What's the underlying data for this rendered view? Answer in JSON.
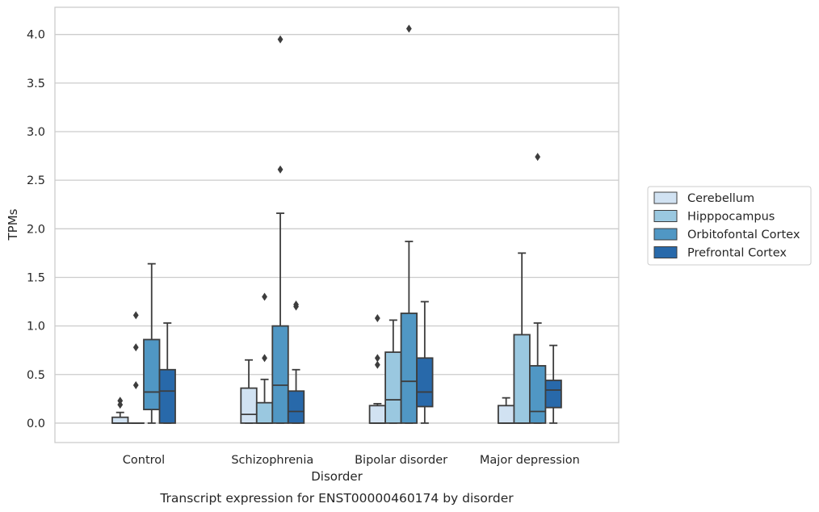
{
  "chart_data": {
    "type": "box",
    "title": "",
    "caption": "Transcript expression for ENST00000460174 by disorder",
    "xlabel": "Disorder",
    "ylabel": "TPMs",
    "ylim": [
      -0.2,
      4.28
    ],
    "yticks": [
      0.0,
      0.5,
      1.0,
      1.5,
      2.0,
      2.5,
      3.0,
      3.5,
      4.0
    ],
    "ytick_labels": [
      "0.0",
      "0.5",
      "1.0",
      "1.5",
      "2.0",
      "2.5",
      "3.0",
      "3.5",
      "4.0"
    ],
    "grid": "horizontal",
    "legend_position": "right-outside",
    "categories": [
      "Control",
      "Schizophrenia",
      "Bipolar disorder",
      "Major depression"
    ],
    "series": [
      {
        "name": "Cerebellum",
        "color": "#d1e2f2",
        "boxes": [
          {
            "q1": 0.0,
            "median": 0.0,
            "q3": 0.06,
            "whisker_low": 0.0,
            "whisker_high": 0.11,
            "outliers": [
              0.19,
              0.23
            ]
          },
          {
            "q1": 0.0,
            "median": 0.09,
            "q3": 0.36,
            "whisker_low": 0.0,
            "whisker_high": 0.65,
            "outliers": []
          },
          {
            "q1": 0.0,
            "median": 0.0,
            "q3": 0.18,
            "whisker_low": 0.0,
            "whisker_high": 0.2,
            "outliers": [
              0.6,
              0.67,
              1.08
            ]
          },
          {
            "q1": 0.0,
            "median": 0.0,
            "q3": 0.18,
            "whisker_low": 0.0,
            "whisker_high": 0.26,
            "outliers": []
          }
        ]
      },
      {
        "name": "Hipppocampus",
        "color": "#9ac8e0",
        "boxes": [
          {
            "q1": 0.0,
            "median": 0.0,
            "q3": 0.0,
            "whisker_low": 0.0,
            "whisker_high": 0.0,
            "outliers": [
              0.39,
              0.78,
              1.11
            ]
          },
          {
            "q1": 0.0,
            "median": 0.0,
            "q3": 0.21,
            "whisker_low": 0.0,
            "whisker_high": 0.45,
            "outliers": [
              0.67,
              1.3
            ]
          },
          {
            "q1": 0.0,
            "median": 0.24,
            "q3": 0.73,
            "whisker_low": 0.0,
            "whisker_high": 1.06,
            "outliers": []
          },
          {
            "q1": 0.0,
            "median": 0.0,
            "q3": 0.91,
            "whisker_low": 0.0,
            "whisker_high": 1.75,
            "outliers": []
          }
        ]
      },
      {
        "name": "Orbitofontal Cortex",
        "color": "#5097c4",
        "boxes": [
          {
            "q1": 0.14,
            "median": 0.32,
            "q3": 0.86,
            "whisker_low": 0.0,
            "whisker_high": 1.64,
            "outliers": []
          },
          {
            "q1": 0.0,
            "median": 0.39,
            "q3": 1.0,
            "whisker_low": 0.0,
            "whisker_high": 2.16,
            "outliers": [
              2.61,
              3.95
            ]
          },
          {
            "q1": 0.0,
            "median": 0.43,
            "q3": 1.13,
            "whisker_low": 0.0,
            "whisker_high": 1.87,
            "outliers": [
              4.06
            ]
          },
          {
            "q1": 0.0,
            "median": 0.12,
            "q3": 0.59,
            "whisker_low": 0.0,
            "whisker_high": 1.03,
            "outliers": [
              2.74
            ]
          }
        ]
      },
      {
        "name": "Prefrontal Cortex",
        "color": "#2869aa",
        "boxes": [
          {
            "q1": 0.0,
            "median": 0.33,
            "q3": 0.55,
            "whisker_low": 0.0,
            "whisker_high": 1.03,
            "outliers": []
          },
          {
            "q1": 0.0,
            "median": 0.12,
            "q3": 0.33,
            "whisker_low": 0.0,
            "whisker_high": 0.55,
            "outliers": [
              1.2,
              1.22
            ]
          },
          {
            "q1": 0.17,
            "median": 0.32,
            "q3": 0.67,
            "whisker_low": 0.0,
            "whisker_high": 1.25,
            "outliers": []
          },
          {
            "q1": 0.16,
            "median": 0.34,
            "q3": 0.44,
            "whisker_low": 0.0,
            "whisker_high": 0.8,
            "outliers": []
          }
        ]
      }
    ]
  }
}
